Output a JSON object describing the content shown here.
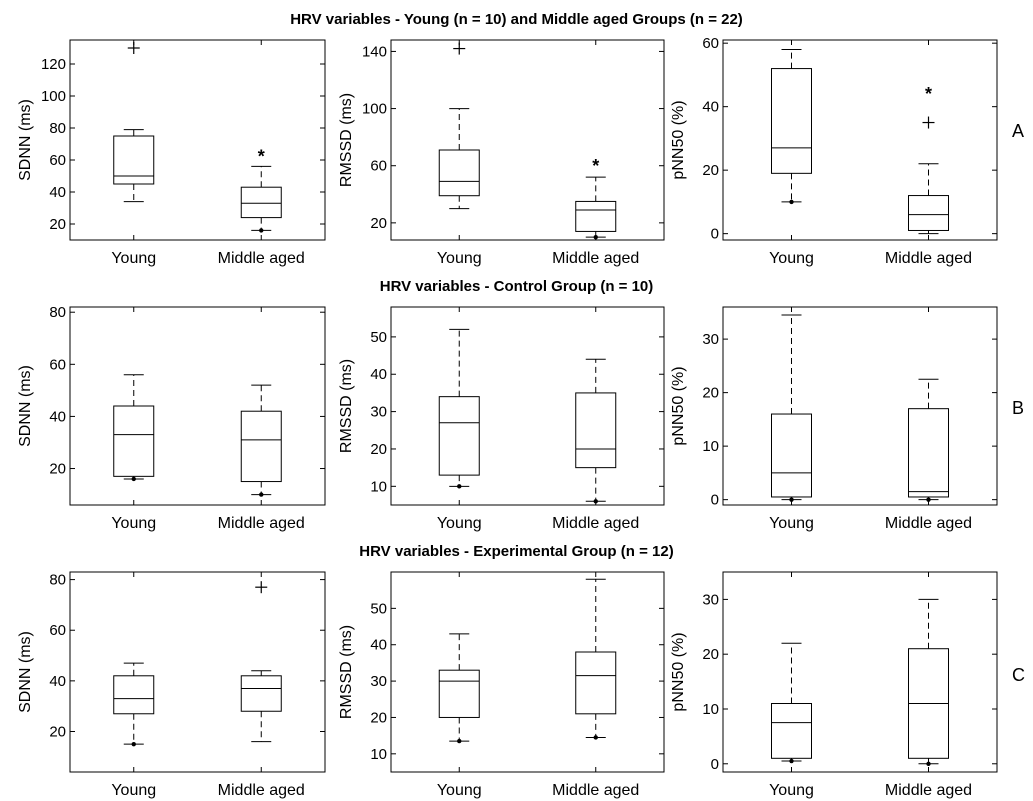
{
  "section_titles": [
    "HRV variables - Young (n = 10) and Middle aged Groups (n = 22)",
    "HRV variables - Control Group (n = 10)",
    "HRV variables - Experimental Group (n = 12)"
  ],
  "row_labels": [
    "A",
    "B",
    "C"
  ],
  "chart_data": [
    {
      "type": "boxplot",
      "row": 0,
      "col": 0,
      "ylabel": "SDNN (ms)",
      "ylim": [
        10,
        135
      ],
      "yticks": [
        20,
        40,
        60,
        80,
        100,
        120
      ],
      "categories": [
        "Young",
        "Middle aged"
      ],
      "boxes": [
        {
          "whisker_low": 34,
          "q1": 45,
          "median": 50,
          "q3": 75,
          "whisker_high": 79,
          "outliers": [
            130
          ],
          "min_marker": null
        },
        {
          "whisker_low": 16,
          "q1": 24,
          "median": 33,
          "q3": 43,
          "whisker_high": 56,
          "outliers": [],
          "min_marker": 16,
          "star": 64
        }
      ]
    },
    {
      "type": "boxplot",
      "row": 0,
      "col": 1,
      "ylabel": "RMSSD (ms)",
      "ylim": [
        8,
        148
      ],
      "yticks": [
        20,
        60,
        100,
        140
      ],
      "categories": [
        "Young",
        "Middle aged"
      ],
      "boxes": [
        {
          "whisker_low": 30,
          "q1": 39,
          "median": 49,
          "q3": 71,
          "whisker_high": 100,
          "outliers": [
            142
          ],
          "min_marker": null
        },
        {
          "whisker_low": 10,
          "q1": 14,
          "median": 29,
          "q3": 35,
          "whisker_high": 52,
          "outliers": [],
          "min_marker": 10,
          "star": 62
        }
      ]
    },
    {
      "type": "boxplot",
      "row": 0,
      "col": 2,
      "ylabel": "pNN50 (%)",
      "ylim": [
        -2,
        61
      ],
      "yticks": [
        0,
        20,
        40,
        60
      ],
      "categories": [
        "Young",
        "Middle aged"
      ],
      "boxes": [
        {
          "whisker_low": 10,
          "q1": 19,
          "median": 27,
          "q3": 52,
          "whisker_high": 58,
          "outliers": [],
          "min_marker": 10
        },
        {
          "whisker_low": 0,
          "q1": 1,
          "median": 6,
          "q3": 12,
          "whisker_high": 22,
          "outliers": [
            35
          ],
          "min_marker": null,
          "star": 45
        }
      ]
    },
    {
      "type": "boxplot",
      "row": 1,
      "col": 0,
      "ylabel": "SDNN (ms)",
      "ylim": [
        6,
        82
      ],
      "yticks": [
        20,
        40,
        60,
        80
      ],
      "categories": [
        "Young",
        "Middle aged"
      ],
      "boxes": [
        {
          "whisker_low": 16,
          "q1": 17,
          "median": 33,
          "q3": 44,
          "whisker_high": 56,
          "outliers": [],
          "min_marker": 16
        },
        {
          "whisker_low": 10,
          "q1": 15,
          "median": 31,
          "q3": 42,
          "whisker_high": 52,
          "outliers": [],
          "min_marker": 10
        }
      ]
    },
    {
      "type": "boxplot",
      "row": 1,
      "col": 1,
      "ylabel": "RMSSD (ms)",
      "ylim": [
        5,
        58
      ],
      "yticks": [
        10,
        20,
        30,
        40,
        50
      ],
      "categories": [
        "Young",
        "Middle aged"
      ],
      "boxes": [
        {
          "whisker_low": 10,
          "q1": 13,
          "median": 27,
          "q3": 34,
          "whisker_high": 52,
          "outliers": [],
          "min_marker": 10
        },
        {
          "whisker_low": 6,
          "q1": 15,
          "median": 20,
          "q3": 35,
          "whisker_high": 44,
          "outliers": [],
          "min_marker": 6
        }
      ]
    },
    {
      "type": "boxplot",
      "row": 1,
      "col": 2,
      "ylabel": "pNN50 (%)",
      "ylim": [
        -1,
        36
      ],
      "yticks": [
        0,
        10,
        20,
        30
      ],
      "categories": [
        "Young",
        "Middle aged"
      ],
      "boxes": [
        {
          "whisker_low": 0,
          "q1": 0.5,
          "median": 5,
          "q3": 16,
          "whisker_high": 34.5,
          "outliers": [],
          "min_marker": 0
        },
        {
          "whisker_low": 0,
          "q1": 0.5,
          "median": 1.5,
          "q3": 17,
          "whisker_high": 22.5,
          "outliers": [],
          "min_marker": 0
        }
      ]
    },
    {
      "type": "boxplot",
      "row": 2,
      "col": 0,
      "ylabel": "SDNN (ms)",
      "ylim": [
        4,
        83
      ],
      "yticks": [
        20,
        40,
        60,
        80
      ],
      "categories": [
        "Young",
        "Middle aged"
      ],
      "boxes": [
        {
          "whisker_low": 15,
          "q1": 27,
          "median": 33,
          "q3": 42,
          "whisker_high": 47,
          "outliers": [],
          "min_marker": 15
        },
        {
          "whisker_low": 16,
          "q1": 28,
          "median": 37,
          "q3": 42,
          "whisker_high": 44,
          "outliers": [
            77
          ],
          "min_marker": null
        }
      ]
    },
    {
      "type": "boxplot",
      "row": 2,
      "col": 1,
      "ylabel": "RMSSD (ms)",
      "ylim": [
        5,
        60
      ],
      "yticks": [
        10,
        20,
        30,
        40,
        50
      ],
      "categories": [
        "Young",
        "Middle aged"
      ],
      "boxes": [
        {
          "whisker_low": 13.5,
          "q1": 20,
          "median": 30,
          "q3": 33,
          "whisker_high": 43,
          "outliers": [],
          "min_marker": 13.5
        },
        {
          "whisker_low": 14.5,
          "q1": 21,
          "median": 31.5,
          "q3": 38,
          "whisker_high": 58,
          "outliers": [],
          "min_marker": 14.5
        }
      ]
    },
    {
      "type": "boxplot",
      "row": 2,
      "col": 2,
      "ylabel": "pNN50 (%)",
      "ylim": [
        -1.5,
        35
      ],
      "yticks": [
        0,
        10,
        20,
        30
      ],
      "categories": [
        "Young",
        "Middle aged"
      ],
      "boxes": [
        {
          "whisker_low": 0.5,
          "q1": 1,
          "median": 7.5,
          "q3": 11,
          "whisker_high": 22,
          "outliers": [],
          "min_marker": 0.5
        },
        {
          "whisker_low": 0,
          "q1": 1,
          "median": 11,
          "q3": 21,
          "whisker_high": 30,
          "outliers": [],
          "min_marker": 0
        }
      ]
    }
  ]
}
